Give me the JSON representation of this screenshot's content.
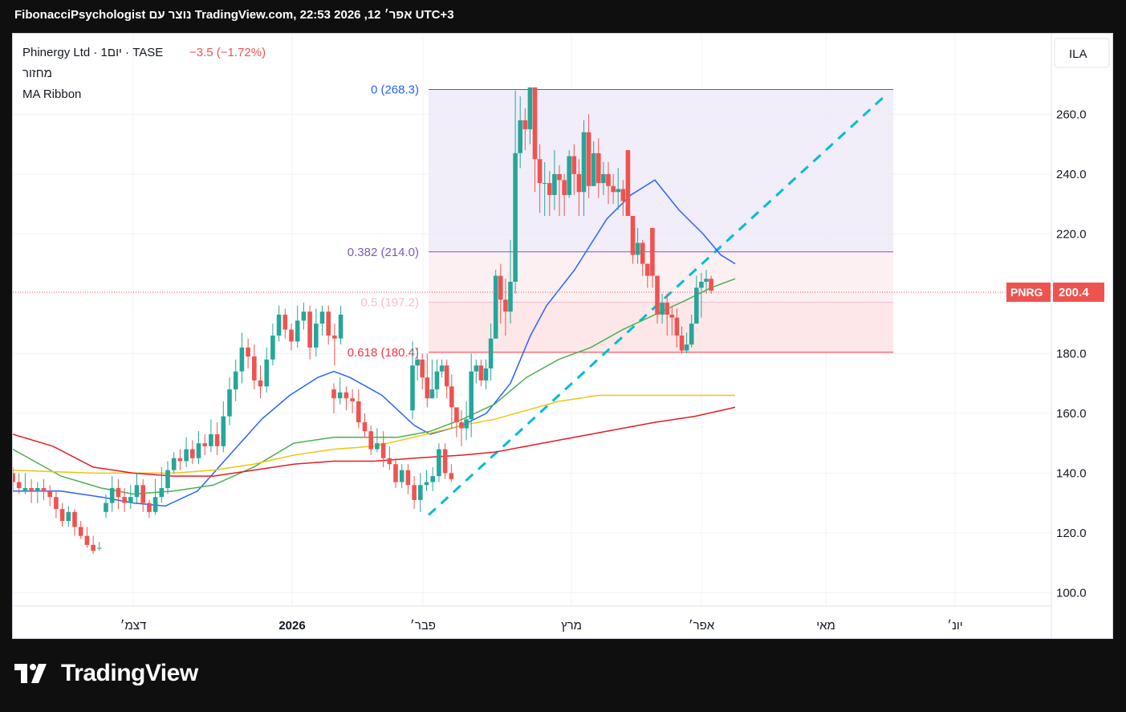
{
  "header": {
    "attribution": "FibonacciPsychologist נוצר עם TradingView.com, 22:53 2026 ,12 אפר׳ UTC+3"
  },
  "legend": {
    "symbol": "Phinergy Ltd · 1יום · TASE",
    "change": "−3.5 (−1.72%)",
    "volume_label": "מחזור",
    "indicator_label": "MA Ribbon"
  },
  "currency_button": "ILA",
  "price_tag": {
    "ticker": "PNRG",
    "price": "200.4"
  },
  "brand": {
    "name": "TradingView"
  },
  "colors": {
    "up": "#26a69a",
    "down": "#ef5350",
    "ma_blue": "#2962ff",
    "ma_green": "#4caf50",
    "ma_yellow": "#f2c40f",
    "ma_red": "#e51c23",
    "trendline": "#00bcd4"
  },
  "chart_data": {
    "type": "candlestick",
    "y_axis": {
      "ticks": [
        "100.0",
        "120.0",
        "140.0",
        "160.0",
        "180.0",
        "200.0",
        "220.0",
        "240.0",
        "260.0"
      ],
      "range": [
        95,
        280
      ]
    },
    "x_axis": {
      "ticks": [
        "דצמ׳",
        "2026",
        "פבר׳",
        "מרץ",
        "אפר׳",
        "מאי",
        "יונ׳"
      ]
    },
    "candles": [
      [
        140,
        137,
        142,
        134
      ],
      [
        137,
        135,
        140,
        133
      ],
      [
        134,
        135,
        140,
        133
      ],
      [
        135,
        134,
        138,
        130
      ],
      [
        134,
        135,
        137,
        130
      ],
      [
        135,
        134,
        138,
        131
      ],
      [
        134,
        132,
        136,
        129
      ],
      [
        132,
        128,
        134,
        125
      ],
      [
        128,
        124,
        130,
        122
      ],
      [
        124,
        127,
        129,
        122
      ],
      [
        127,
        122,
        128,
        119
      ],
      [
        122,
        119,
        124,
        118
      ],
      [
        119,
        116,
        122,
        115
      ],
      [
        116,
        114,
        119,
        113
      ],
      [
        115,
        115,
        117,
        114
      ],
      [
        127,
        130,
        133,
        125
      ],
      [
        130,
        135,
        139,
        127
      ],
      [
        135,
        132,
        138,
        128
      ],
      [
        132,
        130,
        135,
        127
      ],
      [
        130,
        132,
        136,
        128
      ],
      [
        132,
        136,
        140,
        130
      ],
      [
        136,
        130,
        138,
        127
      ],
      [
        130,
        127,
        131,
        125
      ],
      [
        127,
        132,
        138,
        126
      ],
      [
        132,
        135,
        142,
        130
      ],
      [
        135,
        141,
        144,
        133
      ],
      [
        141,
        145,
        147,
        140
      ],
      [
        145,
        144,
        148,
        141
      ],
      [
        144,
        148,
        152,
        142
      ],
      [
        148,
        145,
        151,
        143
      ],
      [
        145,
        150,
        154,
        143
      ],
      [
        150,
        149,
        153,
        146
      ],
      [
        149,
        153,
        158,
        147
      ],
      [
        153,
        149,
        157,
        146
      ],
      [
        149,
        159,
        164,
        147
      ],
      [
        159,
        168,
        172,
        156
      ],
      [
        168,
        174,
        178,
        164
      ],
      [
        174,
        182,
        187,
        170
      ],
      [
        182,
        179,
        185,
        175
      ],
      [
        179,
        171,
        183,
        168
      ],
      [
        171,
        169,
        176,
        165
      ],
      [
        169,
        178,
        182,
        167
      ],
      [
        178,
        186,
        190,
        176
      ],
      [
        186,
        193,
        196,
        184
      ],
      [
        193,
        188,
        195,
        185
      ],
      [
        188,
        184,
        190,
        181
      ],
      [
        184,
        191,
        196,
        182
      ],
      [
        191,
        194,
        197,
        188
      ],
      [
        194,
        182,
        196,
        178
      ],
      [
        182,
        190,
        195,
        179
      ],
      [
        190,
        194,
        196,
        186
      ],
      [
        194,
        186,
        196,
        183
      ],
      [
        186,
        185,
        190,
        176
      ],
      [
        185,
        193,
        196,
        183
      ],
      [
        168,
        165,
        170,
        160
      ],
      [
        165,
        167,
        172,
        163
      ],
      [
        167,
        165,
        169,
        161
      ],
      [
        165,
        164,
        168,
        160
      ],
      [
        164,
        157,
        168,
        155
      ],
      [
        157,
        154,
        160,
        152
      ],
      [
        154,
        148,
        156,
        146
      ],
      [
        148,
        150,
        155,
        147
      ],
      [
        150,
        145,
        154,
        142
      ],
      [
        145,
        143,
        149,
        141
      ],
      [
        143,
        137,
        145,
        135
      ],
      [
        137,
        141,
        143,
        135
      ],
      [
        141,
        136,
        143,
        133
      ],
      [
        136,
        131,
        139,
        128
      ],
      [
        131,
        136,
        140,
        127
      ],
      [
        136,
        137,
        141,
        134
      ],
      [
        137,
        139,
        142,
        134
      ],
      [
        139,
        148,
        150,
        137
      ],
      [
        148,
        140,
        150,
        138
      ],
      [
        140,
        138,
        143,
        137
      ],
      [
        161,
        176,
        184,
        158
      ],
      [
        176,
        178,
        182,
        171
      ],
      [
        178,
        172,
        180,
        168
      ],
      [
        172,
        165,
        180,
        162
      ],
      [
        165,
        168,
        178,
        165
      ],
      [
        168,
        174,
        178,
        165
      ],
      [
        174,
        176,
        178,
        172
      ],
      [
        176,
        169,
        178,
        165
      ],
      [
        169,
        162,
        173,
        155
      ],
      [
        162,
        157,
        160,
        152
      ],
      [
        157,
        155,
        161,
        149
      ],
      [
        155,
        158,
        164,
        151
      ],
      [
        158,
        174,
        180,
        152
      ],
      [
        174,
        176,
        178,
        170
      ],
      [
        176,
        171,
        178,
        169
      ],
      [
        171,
        175,
        178,
        168
      ],
      [
        175,
        185,
        190,
        171
      ],
      [
        185,
        206,
        208,
        185
      ],
      [
        206,
        198,
        210,
        190
      ],
      [
        198,
        194,
        205,
        186
      ],
      [
        194,
        204,
        218,
        190
      ],
      [
        204,
        247,
        268,
        200
      ],
      [
        247,
        258,
        266,
        242
      ],
      [
        258,
        255,
        262,
        248
      ],
      [
        255,
        269,
        269,
        250
      ],
      [
        269,
        245,
        266,
        234
      ],
      [
        245,
        237,
        250,
        227
      ],
      [
        237,
        237,
        244,
        226
      ],
      [
        237,
        233,
        241,
        226
      ],
      [
        233,
        240,
        248,
        228
      ],
      [
        240,
        238,
        243,
        226
      ],
      [
        238,
        233,
        240,
        226
      ],
      [
        233,
        246,
        248,
        232
      ],
      [
        246,
        240,
        250,
        233
      ],
      [
        240,
        234,
        245,
        226
      ],
      [
        234,
        254,
        258,
        226
      ],
      [
        254,
        236,
        260,
        232
      ],
      [
        236,
        247,
        251,
        236
      ],
      [
        247,
        237,
        252,
        232
      ],
      [
        237,
        240,
        244,
        233
      ],
      [
        240,
        236,
        244,
        230
      ],
      [
        236,
        234,
        240,
        230
      ],
      [
        234,
        235,
        242,
        228
      ],
      [
        235,
        231,
        238,
        226
      ],
      [
        248,
        226,
        248,
        226
      ],
      [
        226,
        213,
        226,
        210
      ],
      [
        213,
        217,
        222,
        210
      ],
      [
        217,
        210,
        218,
        206
      ],
      [
        210,
        206,
        210,
        202
      ],
      [
        222,
        206,
        222,
        202
      ],
      [
        206,
        193,
        206,
        190
      ],
      [
        193,
        197,
        200,
        190
      ],
      [
        197,
        193,
        200,
        186
      ],
      [
        193,
        192,
        196,
        186
      ],
      [
        192,
        186,
        195,
        182
      ],
      [
        186,
        181,
        189,
        180
      ],
      [
        181,
        183,
        187,
        180
      ],
      [
        183,
        190,
        193,
        182
      ],
      [
        190,
        202,
        206,
        190
      ],
      [
        202,
        204,
        207,
        192
      ],
      [
        204,
        205,
        208,
        200
      ],
      [
        205,
        201,
        206,
        200
      ]
    ],
    "fibonacci": {
      "levels": [
        {
          "label": "0 (268.3)",
          "value": 268.3
        },
        {
          "label": "0.382 (214.0)",
          "value": 214.0
        },
        {
          "label": "0.5 (197.2)",
          "value": 197.2
        },
        {
          "label": "0.618 (180.4)",
          "value": 180.4
        }
      ]
    },
    "trendline": {
      "from": [
        0,
        126
      ],
      "to": [
        1,
        267
      ]
    },
    "last_price": 200.4
  }
}
